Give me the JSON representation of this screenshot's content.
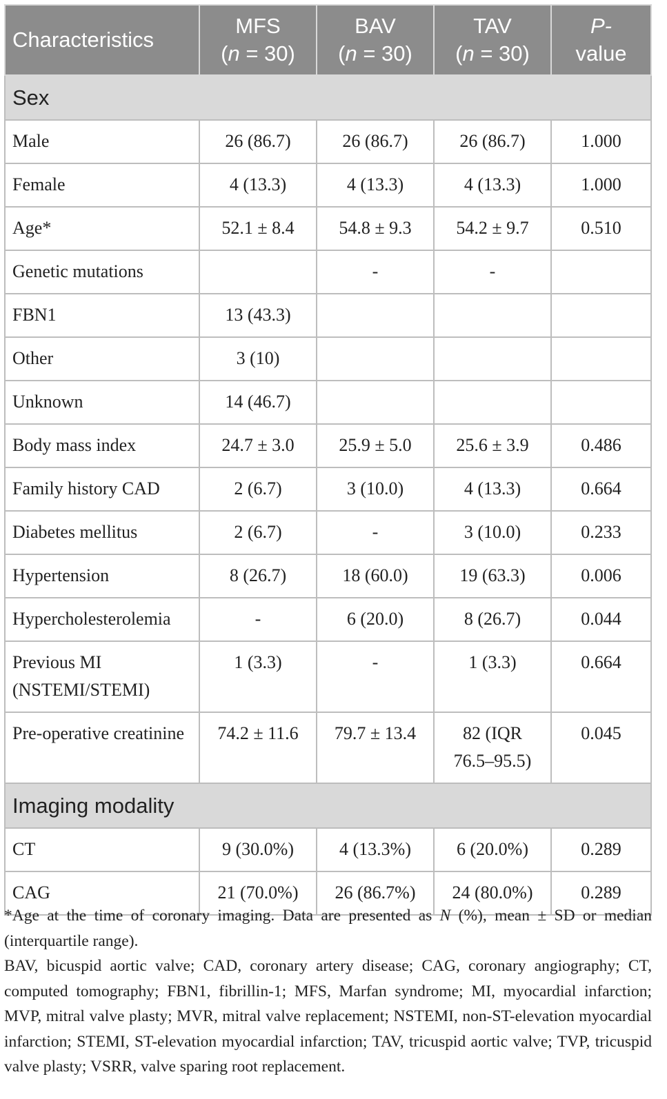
{
  "header": {
    "col1": "Characteristics",
    "col2_a": "MFS",
    "col2_n": "n",
    "col2_b": " = 30)",
    "col3_a": "BAV",
    "col3_n": "n",
    "col3_b": " = 30)",
    "col4_a": "TAV",
    "col4_n": "n",
    "col4_b": " = 30)",
    "open_paren": "(",
    "col5_a": "P-",
    "col5_b": "value"
  },
  "sections": {
    "sex": "Sex",
    "imaging": "Imaging modality"
  },
  "rows": [
    {
      "label": "Male",
      "mfs": "26 (86.7)",
      "bav": "26 (86.7)",
      "tav": "26 (86.7)",
      "p": "1.000"
    },
    {
      "label": "Female",
      "mfs": "4 (13.3)",
      "bav": "4 (13.3)",
      "tav": "4 (13.3)",
      "p": "1.000"
    },
    {
      "label": "Age*",
      "mfs": "52.1 ± 8.4",
      "bav": "54.8 ± 9.3",
      "tav": "54.2 ± 9.7",
      "p": "0.510"
    },
    {
      "label": "Genetic mutations",
      "mfs": "",
      "bav": "-",
      "tav": "-",
      "p": ""
    },
    {
      "label": "FBN1",
      "mfs": "13 (43.3)",
      "bav": "",
      "tav": "",
      "p": ""
    },
    {
      "label": "Other",
      "mfs": "3 (10)",
      "bav": "",
      "tav": "",
      "p": ""
    },
    {
      "label": "Unknown",
      "mfs": "14 (46.7)",
      "bav": "",
      "tav": "",
      "p": ""
    },
    {
      "label": "Body mass index",
      "mfs": "24.7 ± 3.0",
      "bav": "25.9 ± 5.0",
      "tav": "25.6 ± 3.9",
      "p": "0.486"
    },
    {
      "label": "Family history CAD",
      "mfs": "2 (6.7)",
      "bav": "3 (10.0)",
      "tav": "4 (13.3)",
      "p": "0.664"
    },
    {
      "label": "Diabetes mellitus",
      "mfs": "2 (6.7)",
      "bav": "-",
      "tav": "3 (10.0)",
      "p": "0.233"
    },
    {
      "label": "Hypertension",
      "mfs": "8 (26.7)",
      "bav": "18 (60.0)",
      "tav": "19 (63.3)",
      "p": "0.006"
    },
    {
      "label": "Hypercholesterolemia",
      "mfs": "-",
      "bav": "6 (20.0)",
      "tav": "8 (26.7)",
      "p": "0.044"
    },
    {
      "label": "Previous MI (NSTEMI/STEMI)",
      "mfs": "1 (3.3)",
      "bav": "-",
      "tav": "1 (3.3)",
      "p": "0.664"
    },
    {
      "label": "Pre-operative creatinine",
      "mfs": "74.2 ± 11.6",
      "bav": "79.7 ± 13.4",
      "tav": "82 (IQR 76.5–95.5)",
      "p": "0.045"
    },
    {
      "label": "CT",
      "mfs": "9 (30.0%)",
      "bav": "4 (13.3%)",
      "tav": "6 (20.0%)",
      "p": "0.289"
    },
    {
      "label": "CAG",
      "mfs": "21 (70.0%)",
      "bav": "26 (86.7%)",
      "tav": "24 (80.0%)",
      "p": "0.289"
    }
  ],
  "footnote": {
    "line1_a": "*Age at the time of coronary imaging. Data are presented as ",
    "line1_n": "N",
    "line1_b": " (%), mean ± SD or median (interquartile range).",
    "abbrev": "BAV, bicuspid aortic valve; CAD, coronary artery disease; CAG, coronary angiography; CT, computed tomography; FBN1, fibrillin-1; MFS, Marfan syndrome; MI, myocardial infarction; MVP, mitral valve plasty; MVR, mitral valve replacement; NSTEMI, non-ST-elevation myocardial infarction; STEMI, ST-elevation myocardial infarction; TAV, tricuspid aortic valve; TVP, tricuspid valve plasty; VSRR, valve sparing root replacement."
  }
}
